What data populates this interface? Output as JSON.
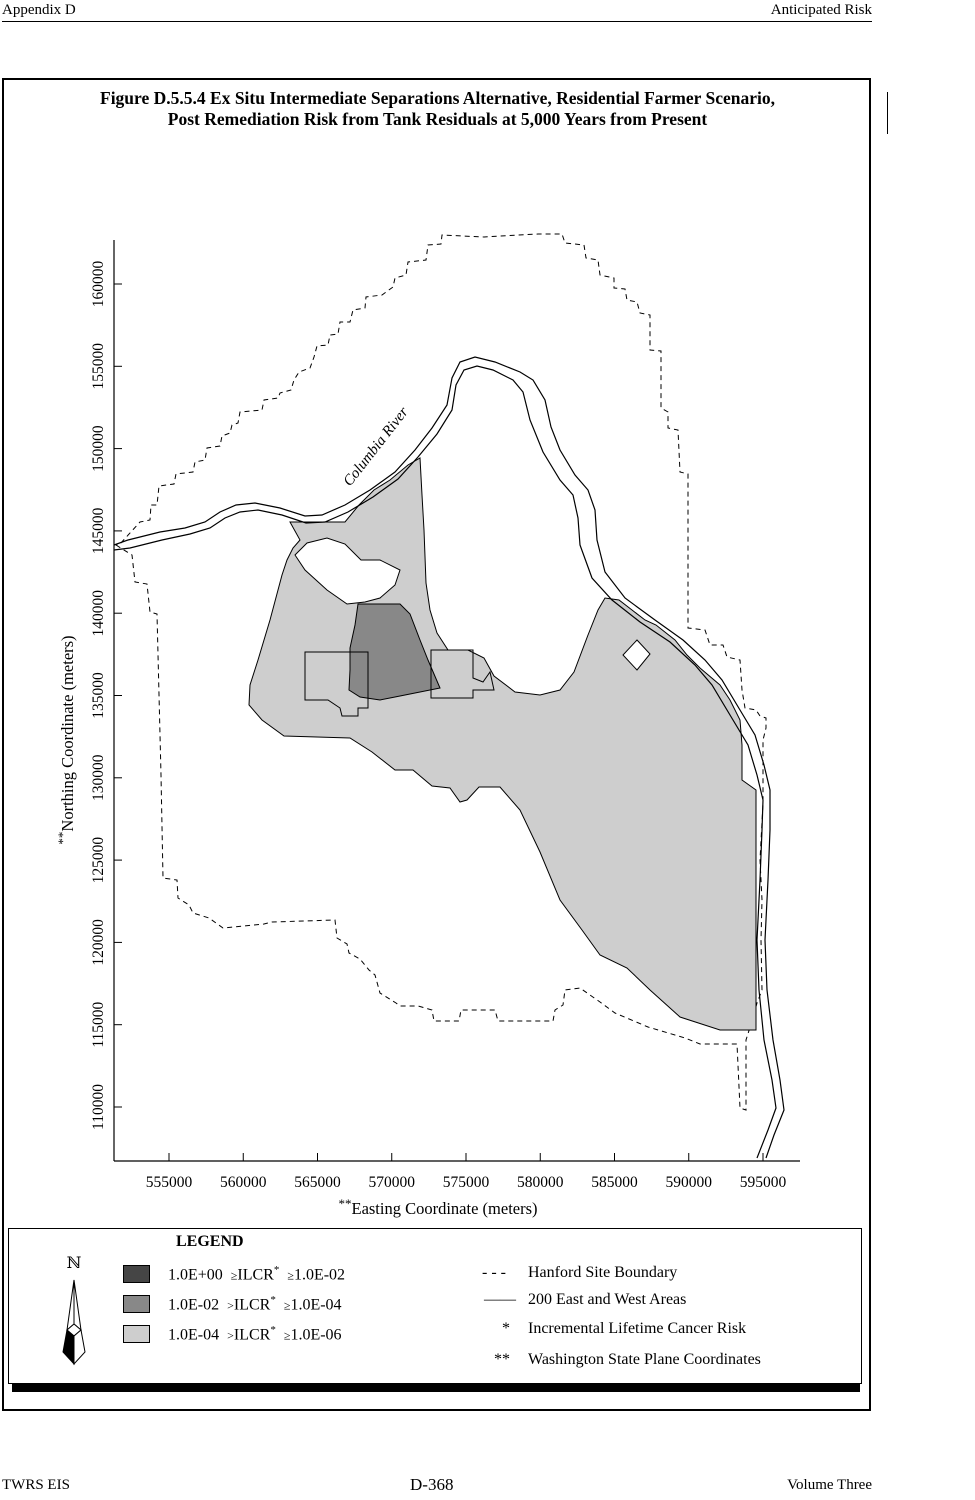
{
  "header": {
    "left": "Appendix D",
    "right": "Anticipated Risk"
  },
  "figure": {
    "title_line1": "Figure D.5.5.4  Ex Situ Intermediate Separations Alternative, Residential Farmer Scenario,",
    "title_line2": "Post Remediation Risk from Tank Residuals at 5,000 Years from Present"
  },
  "map": {
    "river_label": "Columbia River",
    "x_ticks": [
      "555000",
      "560000",
      "565000",
      "570000",
      "575000",
      "580000",
      "585000",
      "590000",
      "595000"
    ],
    "y_ticks": [
      "160000",
      "155000",
      "150000",
      "145000",
      "140000",
      "135000",
      "130000",
      "125000",
      "120000",
      "115000",
      "110000"
    ],
    "x_axis_label": {
      "prefix": "**",
      "text": "Easting Coordinate (meters)"
    },
    "y_axis_label": {
      "prefix": "**",
      "text": "Northing Coordinate (meters)"
    },
    "colors": {
      "high": "#454545",
      "medium": "#888888",
      "low": "#cecece"
    },
    "north_label": "ℕ"
  },
  "legend": {
    "title": "LEGEND",
    "risk_classes": [
      {
        "upper": "1.0E+00",
        "op1": "≥",
        "middle": "ILCR",
        "mark": "*",
        "op2": "≥",
        "lower": "1.0E-02"
      },
      {
        "upper": "1.0E-02",
        "op1": ">",
        "middle": "ILCR",
        "mark": "*",
        "op2": "≥",
        "lower": "1.0E-04"
      },
      {
        "upper": "1.0E-04",
        "op1": ">",
        "middle": "ILCR",
        "mark": "*",
        "op2": "≥",
        "lower": "1.0E-06"
      }
    ],
    "line_items": [
      {
        "symbol": "- - -",
        "label": "Hanford Site Boundary"
      },
      {
        "symbol": "——",
        "label": "200 East and West Areas"
      },
      {
        "symbol": "*",
        "label": "Incremental Lifetime Cancer Risk"
      },
      {
        "symbol": "**",
        "label": "Washington State Plane Coordinates"
      }
    ]
  },
  "footer": {
    "left": "TWRS EIS",
    "center": "D-368",
    "right": "Volume Three"
  }
}
